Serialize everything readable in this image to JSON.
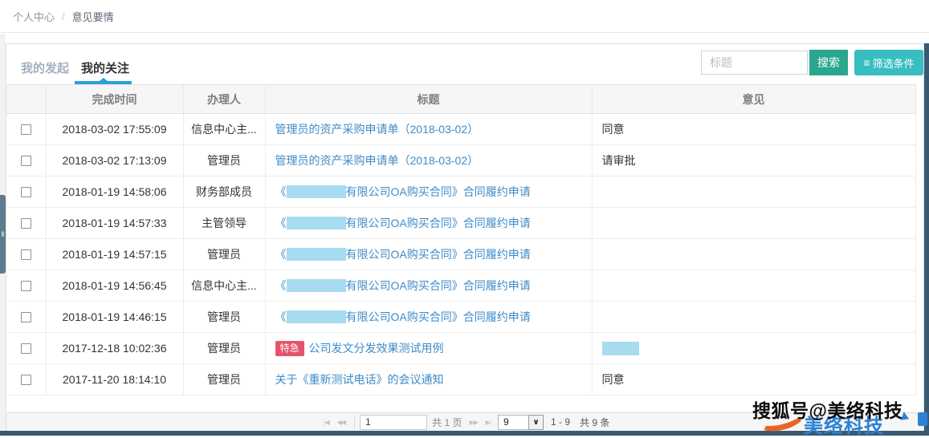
{
  "breadcrumb": {
    "root": "个人中心",
    "separator": "/",
    "current": "意见要情"
  },
  "tabs": {
    "inactive": "我的发起",
    "active": "我的关注"
  },
  "search": {
    "placeholder": "标题",
    "search_label": "搜索",
    "filter_label": "筛选条件",
    "filter_icon": "≡"
  },
  "table": {
    "headers": [
      "完成时间",
      "办理人",
      "标题",
      "意见"
    ],
    "urgent_label": "特急",
    "rows": [
      {
        "time": "2018-03-02 17:55:09",
        "handler": "信息中心主...",
        "title": {
          "text": "管理员的资产采购申请单（2018-03-02）"
        },
        "opinion": {
          "text": "同意"
        }
      },
      {
        "time": "2018-03-02 17:13:09",
        "handler": "管理员",
        "title": {
          "text": "管理员的资产采购申请单（2018-03-02）"
        },
        "opinion": {
          "text": "请审批"
        }
      },
      {
        "time": "2018-01-19 14:58:06",
        "handler": "财务部成员",
        "title": {
          "prefix": "《",
          "redacted": true,
          "text": "有限公司OA购买合同》合同履约申请"
        },
        "opinion": {}
      },
      {
        "time": "2018-01-19 14:57:33",
        "handler": "主管领导",
        "title": {
          "prefix": "《",
          "redacted": true,
          "text": "有限公司OA购买合同》合同履约申请"
        },
        "opinion": {}
      },
      {
        "time": "2018-01-19 14:57:15",
        "handler": "管理员",
        "title": {
          "prefix": "《",
          "redacted": true,
          "text": "有限公司OA购买合同》合同履约申请"
        },
        "opinion": {}
      },
      {
        "time": "2018-01-19 14:56:45",
        "handler": "信息中心主...",
        "title": {
          "prefix": "《",
          "redacted": true,
          "text": "有限公司OA购买合同》合同履约申请"
        },
        "opinion": {}
      },
      {
        "time": "2018-01-19 14:46:15",
        "handler": "管理员",
        "title": {
          "prefix": "《",
          "redacted": true,
          "text": "有限公司OA购买合同》合同履约申请"
        },
        "opinion": {}
      },
      {
        "time": "2017-12-18 10:02:36",
        "handler": "管理员",
        "title": {
          "badge": "特急",
          "text": "公司发文分发效果测试用例"
        },
        "opinion": {
          "redacted": true
        }
      },
      {
        "time": "2017-11-20 18:14:10",
        "handler": "管理员",
        "title": {
          "text": "关于《重新测试电话》的会议通知"
        },
        "opinion": {
          "text": "同意"
        }
      }
    ]
  },
  "pagination": {
    "first_icon": "|◀",
    "prev_icon": "◀◀",
    "next_icon": "▶▶",
    "last_icon": "▶|",
    "page_input": "1",
    "total_pages_label": "共 1 页",
    "page_size": "9",
    "size_arrow": "∨",
    "range_label": "1 - 9",
    "total_label": "共 9 条"
  },
  "watermark": {
    "text": "搜狐号@美络科技",
    "logo_text": "美络科技"
  },
  "colors": {
    "link_blue": "#3e8bc8",
    "tab_underline": "#2f9fd8",
    "search_button_green": "#28a68e",
    "filter_button_teal": "#38bdc2",
    "badge_red": "#e4536b",
    "redaction_blue": "#a6dbf0",
    "frame_dark": "#3a5a74",
    "header_bg": "#f6f6f6"
  }
}
